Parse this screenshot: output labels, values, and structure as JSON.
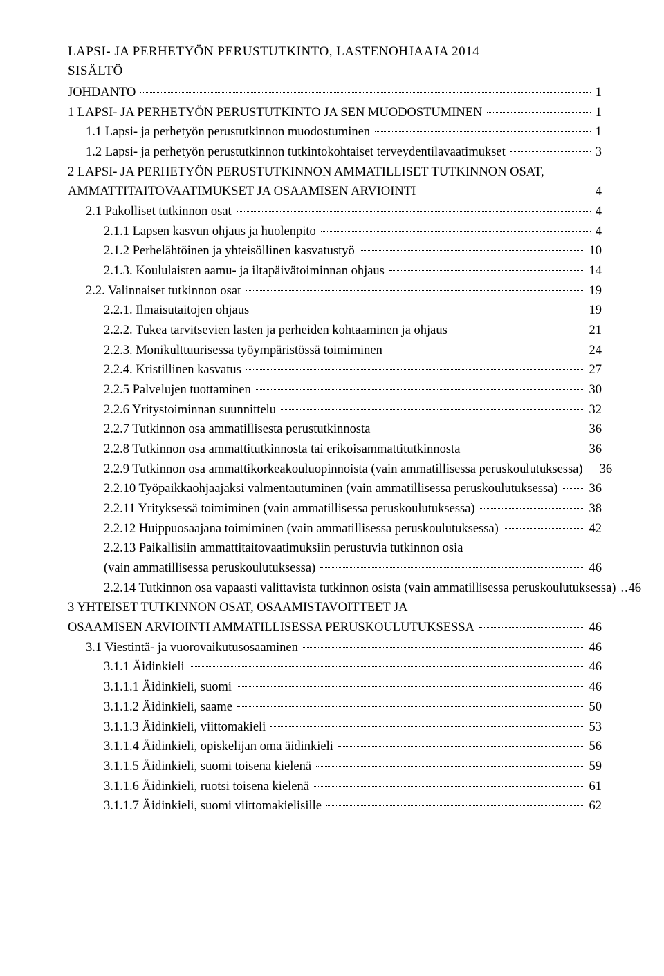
{
  "doc_title": "LAPSI- JA PERHETYÖN PERUSTUTKINTO, LASTENOHJAAJA 2014",
  "sisalto": "SISÄLTÖ",
  "toc": [
    {
      "label": "JOHDANTO",
      "page": "1",
      "indent": 0
    },
    {
      "label": "1 LAPSI- JA PERHETYÖN PERUSTUTKINTO JA SEN MUODOSTUMINEN",
      "page": "1",
      "indent": 0
    },
    {
      "label": "1.1 Lapsi- ja perhetyön perustutkinnon muodostuminen",
      "page": "1",
      "indent": 1
    },
    {
      "label": "1.2 Lapsi- ja perhetyön perustutkinnon tutkintokohtaiset terveydentilavaatimukset",
      "page": "3",
      "indent": 1
    },
    {
      "label": "2 LAPSI- JA PERHETYÖN PERUSTUTKINNON AMMATILLISET TUTKINNON OSAT, AMMATTITAITOVAATIMUKSET JA OSAAMISEN ARVIOINTI",
      "page": "4",
      "indent": 0,
      "wrap": true
    },
    {
      "label": "2.1 Pakolliset tutkinnon osat",
      "page": "4",
      "indent": 1
    },
    {
      "label": "2.1.1 Lapsen kasvun ohjaus ja huolenpito",
      "page": "4",
      "indent": 2
    },
    {
      "label": "2.1.2 Perhelähtöinen ja yhteisöllinen kasvatustyö",
      "page": "10",
      "indent": 2
    },
    {
      "label": "2.1.3. Koululaisten aamu- ja iltapäivätoiminnan ohjaus",
      "page": "14",
      "indent": 2
    },
    {
      "label": "2.2. Valinnaiset tutkinnon osat",
      "page": "19",
      "indent": 1
    },
    {
      "label": "2.2.1. Ilmaisutaitojen ohjaus",
      "page": "19",
      "indent": 2
    },
    {
      "label": "2.2.2. Tukea tarvitsevien lasten ja perheiden kohtaaminen ja ohjaus",
      "page": "21",
      "indent": 2
    },
    {
      "label": "2.2.3. Monikulttuurisessa työympäristössä toimiminen",
      "page": "24",
      "indent": 2
    },
    {
      "label": "2.2.4. Kristillinen kasvatus",
      "page": "27",
      "indent": 2
    },
    {
      "label": "2.2.5 Palvelujen tuottaminen",
      "page": "30",
      "indent": 2
    },
    {
      "label": "2.2.6 Yritystoiminnan suunnittelu",
      "page": "32",
      "indent": 2
    },
    {
      "label": "2.2.7 Tutkinnon osa ammatillisesta perustutkinnosta",
      "page": "36",
      "indent": 2
    },
    {
      "label": "2.2.8 Tutkinnon osa ammattitutkinnosta tai erikoisammattitutkinnosta",
      "page": "36",
      "indent": 2
    },
    {
      "label": "2.2.9 Tutkinnon osa ammattikorkeakouluopinnoista (vain ammatillisessa peruskoulutuksessa)",
      "page": "36",
      "indent": 2
    },
    {
      "label": "2.2.10 Työpaikkaohjaajaksi valmentautuminen (vain ammatillisessa peruskoulutuksessa)",
      "page": "36",
      "indent": 2
    },
    {
      "label": "2.2.11 Yrityksessä toimiminen (vain ammatillisessa peruskoulutuksessa)",
      "page": "38",
      "indent": 2
    },
    {
      "label": "2.2.12 Huippuosaajana toimiminen (vain ammatillisessa peruskoulutuksessa)",
      "page": "42",
      "indent": 2
    },
    {
      "label": "2.2.13 Paikallisiin ammattitaitovaatimuksiin perustuvia tutkinnon osia (vain ammatillisessa peruskoulutuksessa)",
      "page": "46",
      "indent": 2,
      "wrap": true
    },
    {
      "label": "2.2.14 Tutkinnon osa vapaasti valittavista tutkinnon osista (vain ammatillisessa peruskoulutuksessa)",
      "page": "46",
      "indent": 2,
      "tight": true
    },
    {
      "label": "3 YHTEISET TUTKINNON OSAT, OSAAMISTAVOITTEET JA OSAAMISEN ARVIOINTI AMMATILLISESSA PERUSKOULUTUKSESSA",
      "page": "46",
      "indent": 0,
      "wrap": true
    },
    {
      "label": "3.1 Viestintä- ja vuorovaikutusosaaminen",
      "page": "46",
      "indent": 1
    },
    {
      "label": "3.1.1 Äidinkieli",
      "page": "46",
      "indent": 2
    },
    {
      "label": "3.1.1.1 Äidinkieli, suomi",
      "page": "46",
      "indent": 2
    },
    {
      "label": "3.1.1.2 Äidinkieli, saame",
      "page": "50",
      "indent": 2
    },
    {
      "label": "3.1.1.3 Äidinkieli, viittomakieli",
      "page": "53",
      "indent": 2
    },
    {
      "label": "3.1.1.4 Äidinkieli, opiskelijan oma äidinkieli",
      "page": "56",
      "indent": 2
    },
    {
      "label": "3.1.1.5 Äidinkieli, suomi toisena kielenä",
      "page": "59",
      "indent": 2
    },
    {
      "label": "3.1.1.6 Äidinkieli, ruotsi toisena kielenä",
      "page": "61",
      "indent": 2
    },
    {
      "label": "3.1.1.7 Äidinkieli, suomi viittomakielisille",
      "page": "62",
      "indent": 2
    }
  ]
}
